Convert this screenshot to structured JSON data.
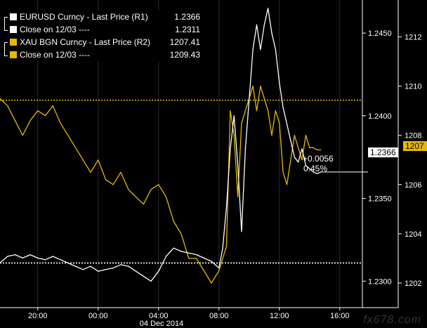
{
  "legend": [
    {
      "name": "EURUSD Curncy - Last Price (R1)",
      "value": "1.2366",
      "color": "#ffffff"
    },
    {
      "name": "Close on 12/03 ----",
      "value": "1.2311",
      "color": "#ffffff"
    },
    {
      "name": "XAU BGN Curncy - Last Price (R2)",
      "value": "1207.41",
      "color": "#e6b800"
    },
    {
      "name": "Close on 12/03 ----",
      "value": "1209.43",
      "color": "#e6b800"
    }
  ],
  "callout": {
    "change": "+0.0056",
    "pct": "0.45%"
  },
  "price_tags": {
    "eurusd": "1.2366",
    "xau": "1207"
  },
  "date_label": "04 Dec 2014",
  "watermark": "fx678.com",
  "chart_data": {
    "type": "line",
    "x_ticks": [
      "20:00",
      "00:00",
      "04:00",
      "08:00",
      "12:00",
      "16:00"
    ],
    "x_tick_hours": [
      -4,
      0,
      4,
      8,
      12,
      16
    ],
    "x_range": [
      -6.5,
      17.5
    ],
    "y_right1": {
      "ticks": [
        "1.2450",
        "1.2400",
        "1.2350",
        "1.2300"
      ],
      "range": [
        1.2284,
        1.247
      ]
    },
    "y_right2": {
      "ticks": [
        "1212",
        "1210",
        "1208",
        "1206",
        "1204",
        "1202"
      ],
      "range": [
        1201.0,
        1213.5
      ]
    },
    "reference_lines": [
      {
        "name": "EURUSD prior close",
        "value": 1.2311,
        "axis": "R1",
        "color": "#ffffff"
      },
      {
        "name": "XAU prior close",
        "value": 1209.43,
        "axis": "R2",
        "color": "#e6b800"
      }
    ],
    "series": [
      {
        "name": "EURUSD Curncy - Last Price (R1)",
        "axis": "R1",
        "color": "#ffffff",
        "x": [
          -6.5,
          -6,
          -5.5,
          -5,
          -4.5,
          -4,
          -3.5,
          -3,
          -2.5,
          -2,
          -1.5,
          -1,
          -0.5,
          0,
          0.5,
          1,
          1.5,
          2,
          2.5,
          3,
          3.5,
          4,
          4.5,
          5,
          5.5,
          6,
          6.5,
          7,
          7.5,
          8,
          8.25,
          8.5,
          8.75,
          9,
          9.25,
          9.5,
          9.75,
          10,
          10.25,
          10.5,
          10.75,
          11,
          11.25,
          11.5,
          11.75,
          12,
          12.25,
          12.5,
          12.75,
          13,
          13.25,
          13.5,
          13.75,
          14,
          14.25,
          14.5,
          14.75
        ],
        "y": [
          1.2311,
          1.2315,
          1.2316,
          1.2314,
          1.2316,
          1.2314,
          1.2313,
          1.2315,
          1.2313,
          1.2311,
          1.2309,
          1.2307,
          1.2309,
          1.2306,
          1.2307,
          1.2308,
          1.231,
          1.2309,
          1.2306,
          1.2303,
          1.23,
          1.2306,
          1.2315,
          1.232,
          1.2318,
          1.2317,
          1.2316,
          1.2314,
          1.2312,
          1.2308,
          1.232,
          1.2345,
          1.238,
          1.24,
          1.237,
          1.233,
          1.238,
          1.241,
          1.244,
          1.2455,
          1.244,
          1.2455,
          1.2465,
          1.245,
          1.244,
          1.242,
          1.2405,
          1.2395,
          1.2385,
          1.2375,
          1.2372,
          1.238,
          1.237,
          1.2368,
          1.2366,
          1.2365,
          1.2366
        ]
      },
      {
        "name": "XAU BGN Curncy - Last Price (R2)",
        "axis": "R2",
        "color": "#e6b800",
        "x": [
          -6.5,
          -6,
          -5.5,
          -5,
          -4.5,
          -4,
          -3.5,
          -3,
          -2.5,
          -2,
          -1.5,
          -1,
          -0.5,
          0,
          0.5,
          1,
          1.5,
          2,
          2.5,
          3,
          3.5,
          4,
          4.5,
          5,
          5.5,
          6,
          6.5,
          7,
          7.5,
          8,
          8.25,
          8.5,
          8.75,
          9,
          9.25,
          9.5,
          9.75,
          10,
          10.25,
          10.5,
          10.75,
          11,
          11.25,
          11.5,
          11.75,
          12,
          12.25,
          12.5,
          12.75,
          13,
          13.25,
          13.5,
          13.75,
          14,
          14.25,
          14.5,
          14.75
        ],
        "y": [
          1209.5,
          1209.2,
          1208.6,
          1208.0,
          1208.6,
          1209.0,
          1208.8,
          1209.2,
          1208.5,
          1208.0,
          1207.5,
          1207.0,
          1206.5,
          1207.0,
          1206.2,
          1206.0,
          1206.5,
          1205.8,
          1205.5,
          1205.2,
          1205.8,
          1206.0,
          1205.5,
          1204.5,
          1204.0,
          1203.0,
          1203.0,
          1202.5,
          1202.0,
          1202.5,
          1203.0,
          1203.5,
          1209.0,
          1208.0,
          1205.5,
          1208.5,
          1209.0,
          1209.5,
          1210.0,
          1209.0,
          1210.0,
          1209.5,
          1209.0,
          1208.0,
          1209.0,
          1208.5,
          1206.5,
          1206.0,
          1207.0,
          1208.0,
          1207.5,
          1207.0,
          1208.0,
          1207.5,
          1207.5,
          1207.41,
          1207.41
        ]
      }
    ]
  }
}
